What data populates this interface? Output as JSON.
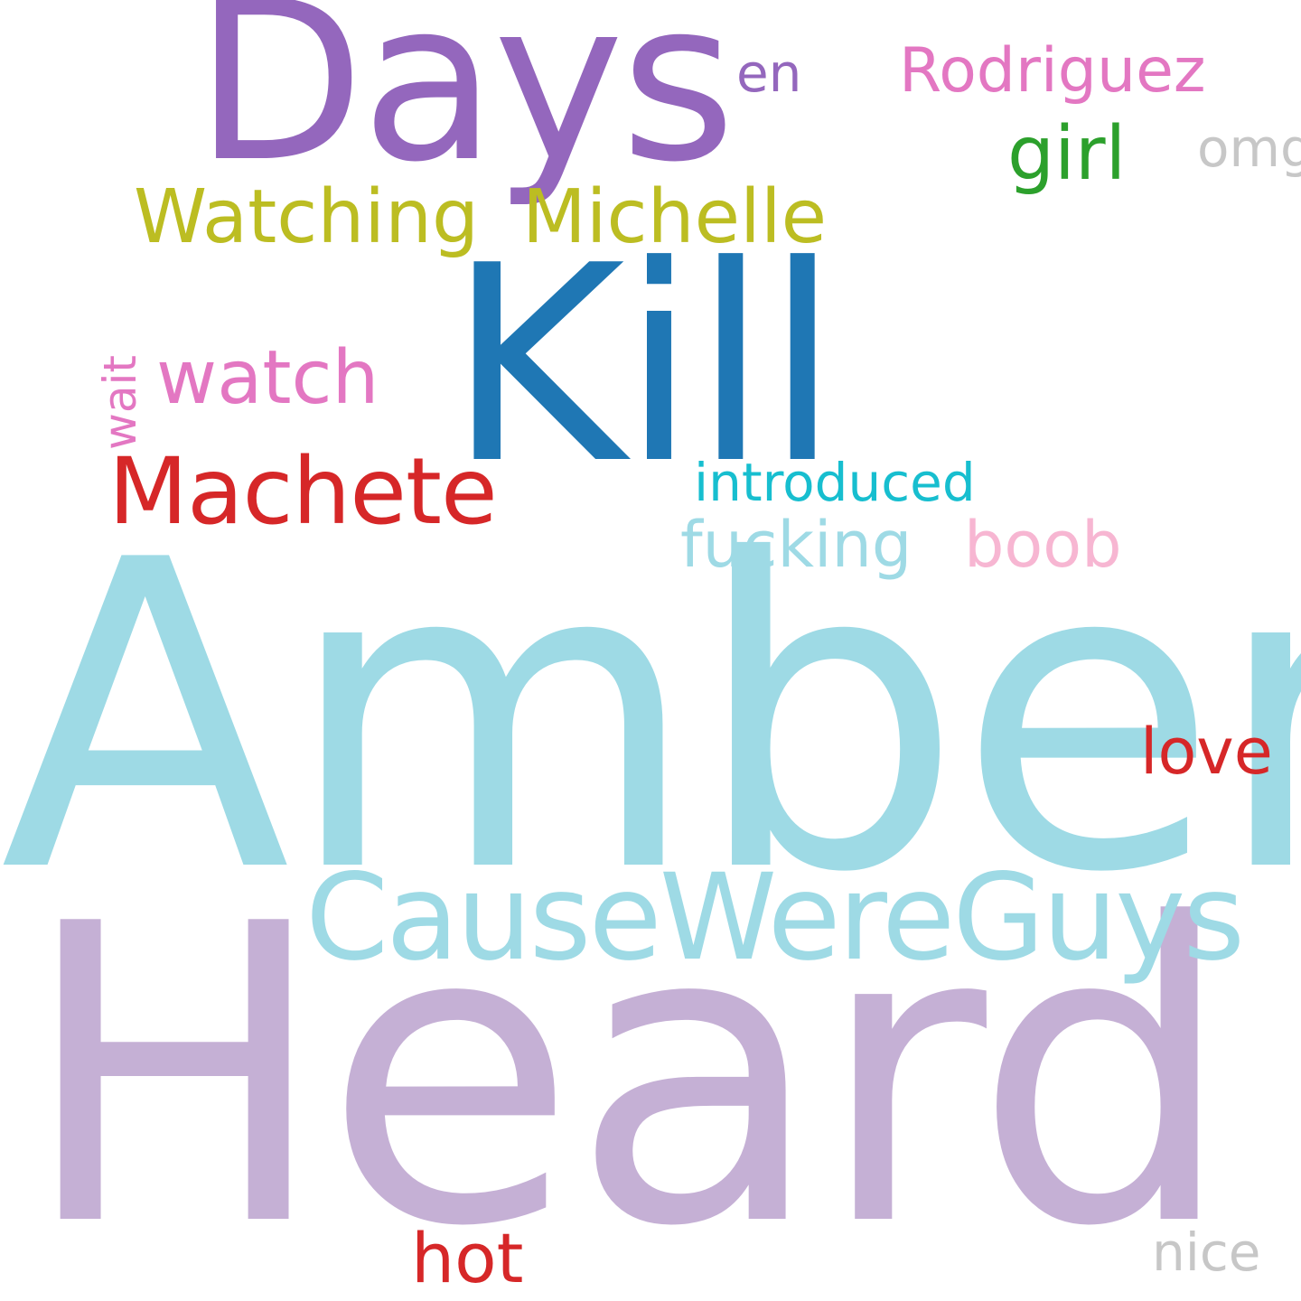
{
  "words": {
    "amber": {
      "text": "Amber",
      "color": "#9edae5"
    },
    "heard": {
      "text": "Heard",
      "color": "#c5b0d5"
    },
    "kill": {
      "text": "Kill",
      "color": "#1f77b4"
    },
    "days": {
      "text": "Days",
      "color": "#9467bd"
    },
    "cause": {
      "text": "CauseWereGuys",
      "color": "#9edae5"
    },
    "machete": {
      "text": "Machete",
      "color": "#d62728"
    },
    "watching": {
      "text": "Watching",
      "color": "#bcbd22"
    },
    "michelle": {
      "text": "Michelle",
      "color": "#bcbd22"
    },
    "watch": {
      "text": "watch",
      "color": "#e377c2"
    },
    "fucking": {
      "text": "fucking",
      "color": "#9edae5"
    },
    "boob": {
      "text": "boob",
      "color": "#f7b6d2"
    },
    "girl": {
      "text": "girl",
      "color": "#2ca02c"
    },
    "rodriguez": {
      "text": "Rodriguez",
      "color": "#e377c2"
    },
    "introduced": {
      "text": "introduced",
      "color": "#17becf"
    },
    "love": {
      "text": "love",
      "color": "#d62728"
    },
    "hot": {
      "text": "hot",
      "color": "#d62728"
    },
    "nice": {
      "text": "nice",
      "color": "#c7c7c7"
    },
    "en": {
      "text": "en",
      "color": "#9467bd"
    },
    "omg": {
      "text": "omg",
      "color": "#c7c7c7"
    },
    "wait": {
      "text": "wait",
      "color": "#e377c2"
    }
  }
}
